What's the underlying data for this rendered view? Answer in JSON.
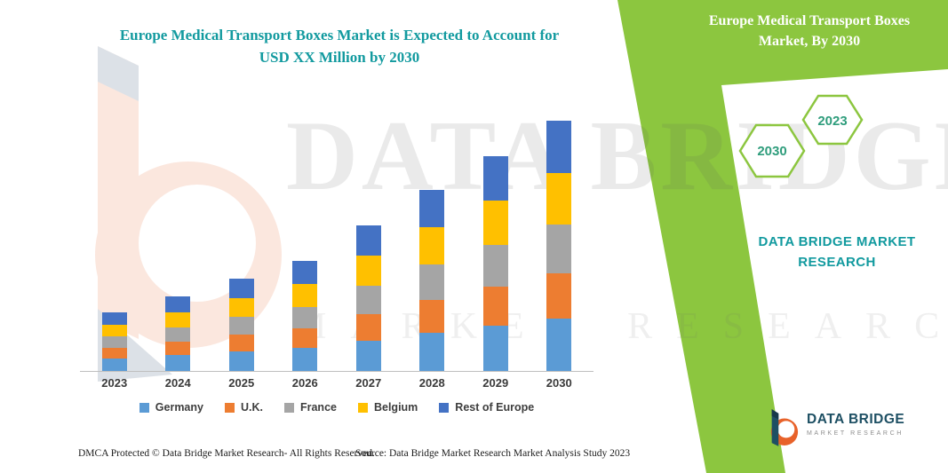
{
  "header": {
    "title_line1": "Europe Medical Transport Boxes Market is Expected to Account for",
    "title_line2": "USD XX Million by 2030"
  },
  "ribbon": {
    "green": "#8CC63F",
    "teal": "#129a9f",
    "title_line1": "Europe Medical Transport Boxes",
    "title_line2": "Market, By 2030",
    "hexagon_labels": [
      "2030",
      "2023"
    ],
    "brand_line1": "DATA BRIDGE MARKET",
    "brand_line2": "RESEARCH"
  },
  "watermark": {
    "line1": "DATA BRIDGE",
    "line2": "MARKET RESEARCH"
  },
  "logo": {
    "name": "DATA BRIDGE",
    "tagline": "MARKET RESEARCH"
  },
  "footer": {
    "dmca": "DMCA Protected © Data Bridge Market Research-  All Rights Reserved.",
    "source": "Source: Data Bridge Market Research  Market Analysis Study 2023"
  },
  "chart_data": {
    "type": "bar",
    "stacked": true,
    "title": "Europe Medical Transport Boxes Market is Expected to Account for USD XX Million by 2030",
    "xlabel": "",
    "ylabel": "",
    "y_units": "relative index (actual USD values masked as XX in source image)",
    "grid": false,
    "legend_position": "bottom",
    "axis": "x-axis only, no y-axis ticks or labels shown",
    "categories": [
      "2023",
      "2024",
      "2025",
      "2026",
      "2027",
      "2028",
      "2029",
      "2030"
    ],
    "series": [
      {
        "name": "Germany",
        "color": "#5B9BD5",
        "values": [
          14,
          18,
          22,
          26,
          34,
          43,
          51,
          59
        ]
      },
      {
        "name": "U.K.",
        "color": "#ED7D31",
        "values": [
          12,
          15,
          19,
          22,
          30,
          37,
          44,
          51
        ]
      },
      {
        "name": "France",
        "color": "#A5A5A5",
        "values": [
          13,
          16,
          20,
          24,
          32,
          40,
          47,
          55
        ]
      },
      {
        "name": "Belgium",
        "color": "#FFC000",
        "values": [
          13,
          17,
          21,
          26,
          34,
          42,
          50,
          58
        ]
      },
      {
        "name": "Rest of Europe",
        "color": "#4472C4",
        "values": [
          14,
          18,
          22,
          26,
          34,
          42,
          50,
          59
        ]
      }
    ],
    "totals": [
      66,
      84,
      104,
      124,
      164,
      204,
      242,
      282
    ]
  }
}
